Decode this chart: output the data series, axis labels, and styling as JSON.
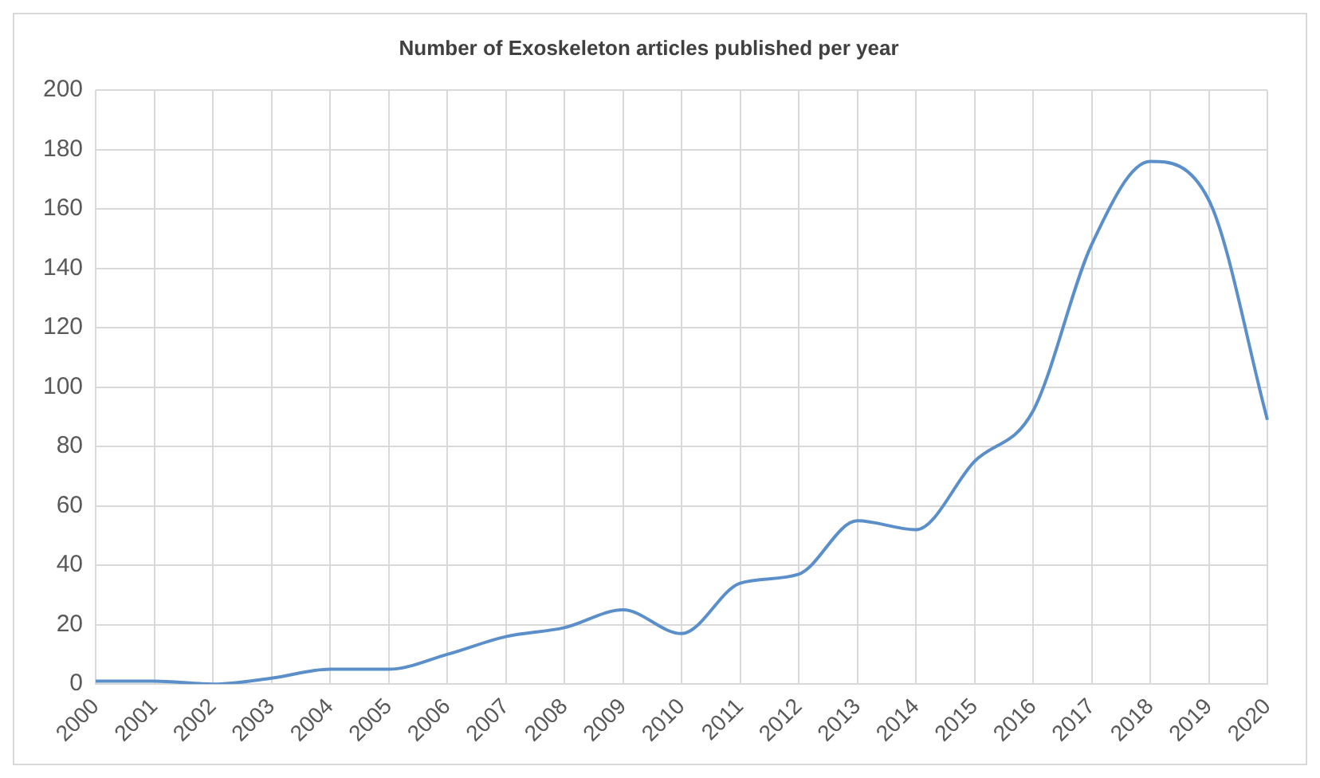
{
  "chart_data": {
    "type": "line",
    "title": "Number of Exoskeleton articles published per year",
    "categories": [
      "2000",
      "2001",
      "2002",
      "2003",
      "2004",
      "2005",
      "2006",
      "2007",
      "2008",
      "2009",
      "2010",
      "2011",
      "2012",
      "2013",
      "2014",
      "2015",
      "2016",
      "2017",
      "2018",
      "2019",
      "2020"
    ],
    "series": [
      {
        "color": "#5b8fc9",
        "values": [
          1,
          1,
          0,
          2,
          5,
          5,
          10,
          16,
          19,
          25,
          17,
          34,
          37,
          55,
          52,
          75,
          92,
          148,
          176,
          163,
          89
        ]
      }
    ],
    "ylim": [
      0,
      200
    ],
    "yticks": [
      0,
      20,
      40,
      60,
      80,
      100,
      120,
      140,
      160,
      180,
      200
    ],
    "grid": true,
    "legend": false,
    "marker": "none",
    "line_style": "solid"
  }
}
